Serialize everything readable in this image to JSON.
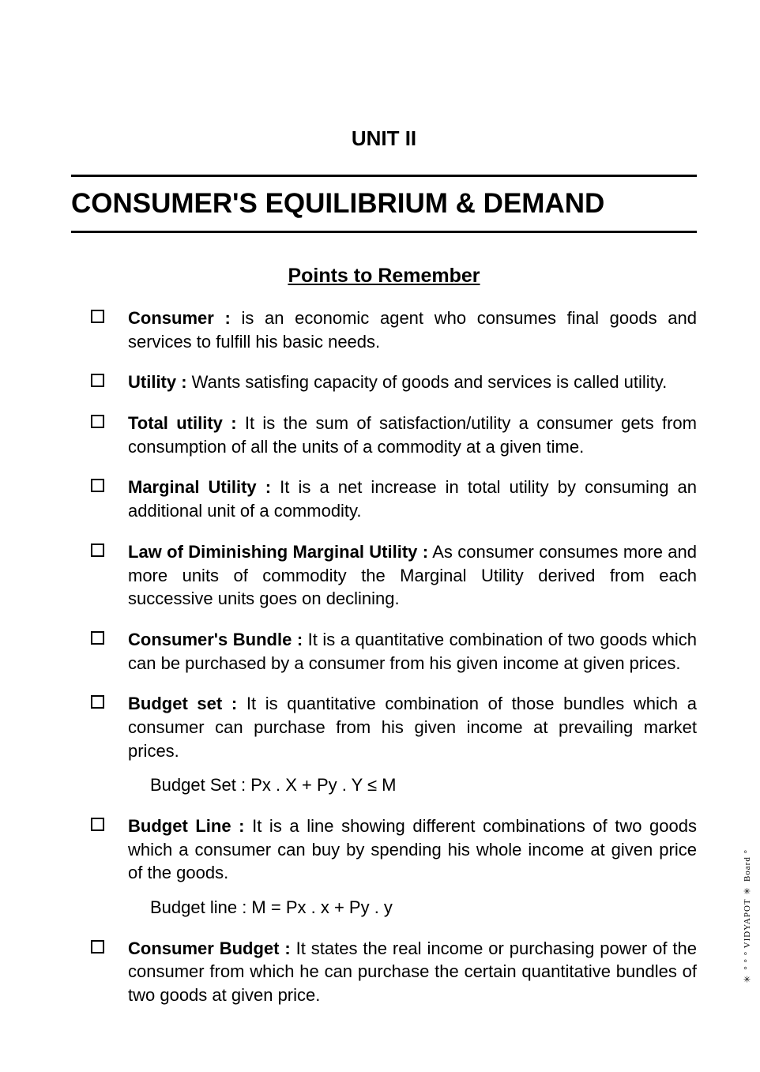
{
  "colors": {
    "background": "#ffffff",
    "text": "#000000",
    "rule": "#000000"
  },
  "typography": {
    "body_family": "Arial, Helvetica, sans-serif",
    "unit_fontsize": 26,
    "title_fontsize": 35,
    "subtitle_fontsize": 25,
    "body_fontsize": 22,
    "line_height": 1.35,
    "bullet_size": 17,
    "bullet_border_width": 2.5
  },
  "header": {
    "unit_label": "UNIT II",
    "title": "CONSUMER'S EQUILIBRIUM & DEMAND",
    "subtitle": "Points to Remember"
  },
  "points": [
    {
      "term": "Consumer :",
      "text": " is an economic agent who consumes final goods and services to fulfill his basic needs."
    },
    {
      "term": "Utility :",
      "text": " Wants satisfing capacity of goods and services is called utility."
    },
    {
      "term": "Total utility :",
      "text": " It is the sum of satisfaction/utility a consumer gets from consumption of all the units of a commodity at a given time."
    },
    {
      "term": "Marginal Utility :",
      "text": " It is a net increase in total utility by consuming an additional unit of a commodity."
    },
    {
      "term": "Law of Diminishing Marginal Utility :",
      "text": " As consumer consumes more and more units of commodity the Marginal Utility derived from each successive units goes on declining."
    },
    {
      "term": "Consumer's Bundle :",
      "text": " It is a quantitative combination of two goods which can be purchased by a consumer from his given income at given prices."
    },
    {
      "term": "Budget set :",
      "text": " It is quantitative combination of those bundles which a consumer can purchase from his given income at prevailing market prices.",
      "formula": "Budget Set : Px . X + Py . Y ≤ M"
    },
    {
      "term": "Budget Line :",
      "text": " It is a line showing different combinations of two goods which a consumer can buy by spending his whole income at given price of the goods.",
      "formula": "Budget line : M = Px . x + Py . y"
    },
    {
      "term": "Consumer Budget :",
      "text": " It states the real income or purchasing power of the consumer from which he can purchase the certain quantitative bundles of two goods at given price."
    }
  ],
  "watermark": "✳ ° ° ° VIDYAPOT ✳ Board °"
}
